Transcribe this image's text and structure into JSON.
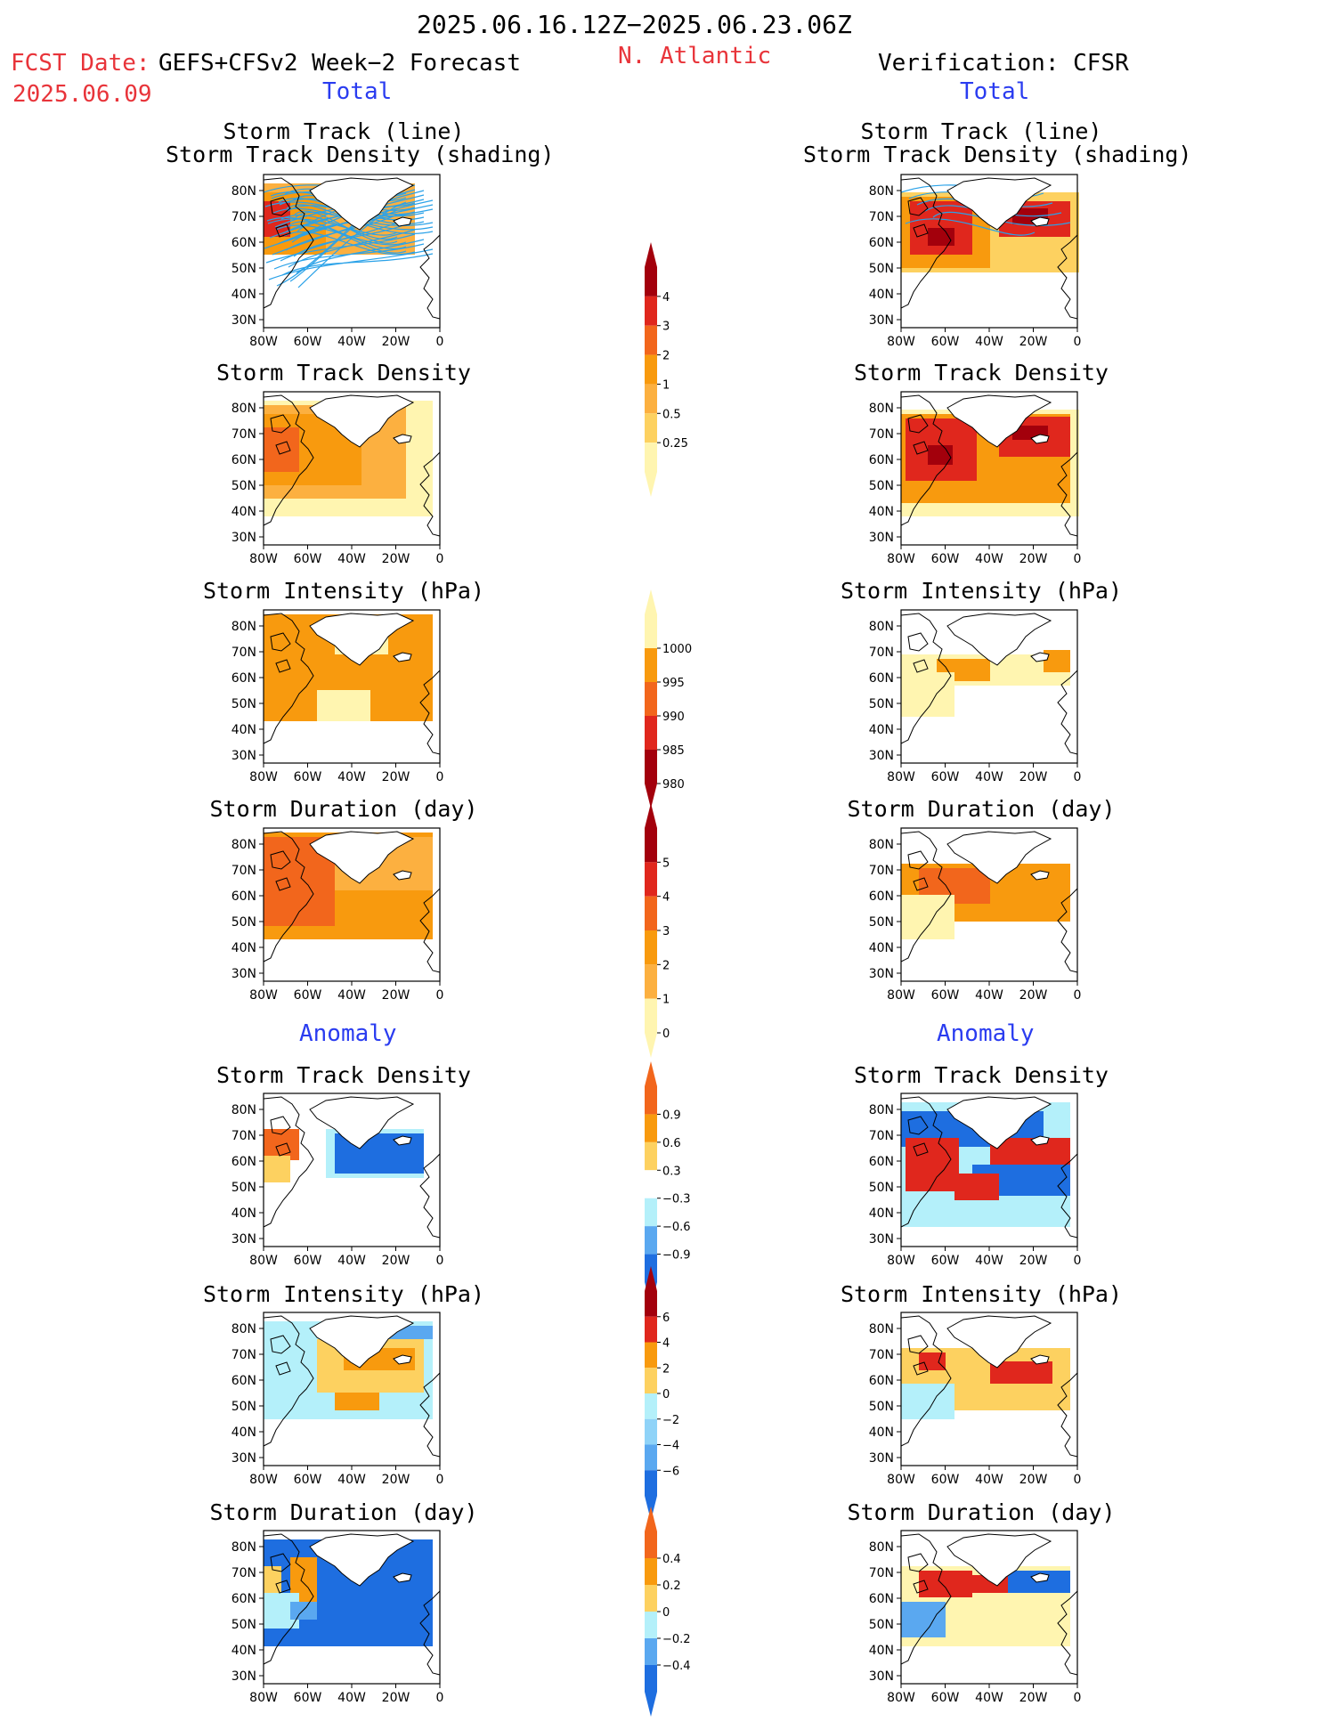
{
  "header": {
    "date_range": "2025.06.16.12Z−2025.06.23.06Z",
    "fcst_label": "FCST Date:",
    "fcst_model": "GEFS+CFSv2 Week−2 Forecast",
    "fcst_date": "2025.06.09",
    "region": "N. Atlantic",
    "verification": "Verification: CFSR",
    "left_section": "Total",
    "right_section": "Total",
    "left_anomaly": "Anomaly",
    "right_anomaly": "Anomaly"
  },
  "panel_titles": {
    "track_line": "Storm Track (line)",
    "track_shading": "Storm Track Density (shading)",
    "density": "Storm Track Density",
    "intensity": "Storm Intensity (hPa)",
    "duration": "Storm Duration (day)"
  },
  "axes": {
    "lat_ticks": [
      "80N",
      "70N",
      "60N",
      "50N",
      "40N",
      "30N"
    ],
    "lon_ticks": [
      "80W",
      "60W",
      "40W",
      "20W",
      "0"
    ]
  },
  "colors": {
    "yellow_light": "#fff5b0",
    "yellow": "#fdd160",
    "orange_light": "#fcb040",
    "orange": "#f89a0e",
    "orange_dark": "#f2661c",
    "red": "#e0271d",
    "red_dark": "#a3000c",
    "cyan_light": "#b4f0fa",
    "cyan": "#8fd3f8",
    "blue_light": "#5aa8f0",
    "blue": "#1e6ee0",
    "track_line": "#2ba2e8"
  },
  "colorbars": {
    "density": [
      "0.25",
      "0.5",
      "1",
      "2",
      "3",
      "4"
    ],
    "intensity": [
      "1000",
      "995",
      "990",
      "985",
      "980"
    ],
    "duration": [
      "0",
      "1",
      "2",
      "3",
      "4",
      "5"
    ],
    "density_anom": [
      "0.9",
      "0.6",
      "0.3",
      "−0.3",
      "−0.6",
      "−0.9"
    ],
    "intensity_anom": [
      "6",
      "4",
      "2",
      "0",
      "−2",
      "−4",
      "−6"
    ],
    "duration_anom": [
      "0.4",
      "0.2",
      "0",
      "−0.2",
      "−0.4"
    ]
  }
}
